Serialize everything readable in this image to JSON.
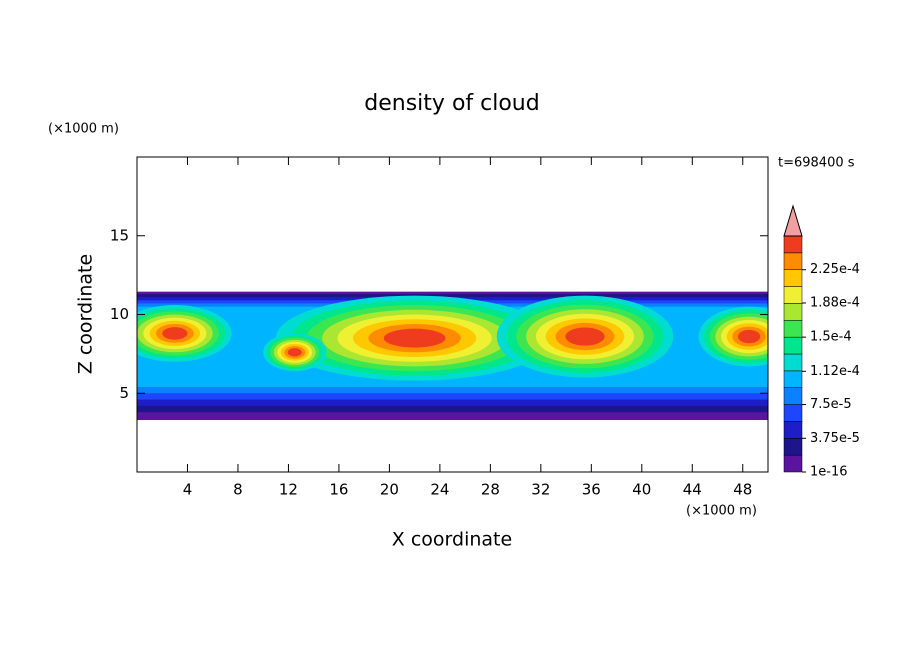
{
  "chart_data": {
    "type": "contour",
    "title": "density of cloud",
    "xlabel": "X coordinate",
    "ylabel": "Z coordinate",
    "x_unit": "(×1000 m)",
    "y_unit": "(×1000 m)",
    "annotation": "t=698400 s",
    "xlim": [
      0,
      50
    ],
    "ylim": [
      0,
      20
    ],
    "xticks": [
      4,
      8,
      12,
      16,
      20,
      24,
      28,
      32,
      36,
      40,
      44,
      48
    ],
    "yticks": [
      5,
      10,
      15
    ],
    "colorbar": {
      "clim": [
        1e-16,
        0.0002625
      ],
      "levels": [
        1e-16,
        1.875e-05,
        3.75e-05,
        5.625e-05,
        7.5e-05,
        9.375e-05,
        0.0001125,
        0.00013125,
        0.00015,
        0.00016875,
        0.0001875,
        0.00020625,
        0.000225,
        0.00024375
      ],
      "colors": [
        "#5a14a0",
        "#1e148c",
        "#1e1ec8",
        "#1e46ff",
        "#0a82ff",
        "#00b4ff",
        "#00dcd2",
        "#00e68c",
        "#3ce650",
        "#aae632",
        "#f0f032",
        "#ffc800",
        "#ff8c00",
        "#f03c1e"
      ],
      "over_color": "#f0a0a0",
      "ticks": [
        {
          "value": 1e-16,
          "label": "1e-16"
        },
        {
          "value": 3.75e-05,
          "label": "3.75e-5"
        },
        {
          "value": 7.5e-05,
          "label": "7.5e-5"
        },
        {
          "value": 0.000112,
          "label": "1.12e-4"
        },
        {
          "value": 0.00015,
          "label": "1.5e-4"
        },
        {
          "value": 0.000188,
          "label": "1.88e-4"
        },
        {
          "value": 0.000225,
          "label": "2.25e-4"
        }
      ]
    }
  }
}
